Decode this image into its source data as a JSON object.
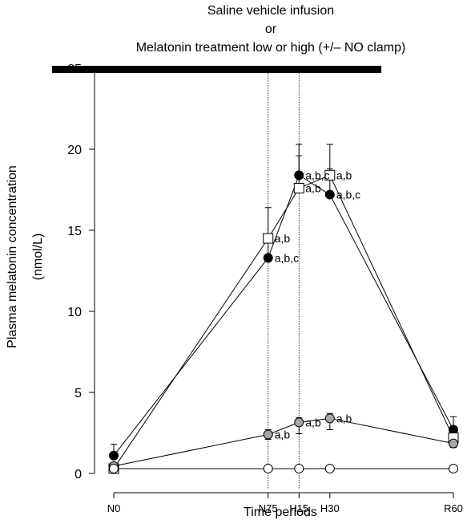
{
  "chart_data": {
    "type": "line",
    "title_lines": [
      "Saline vehicle infusion",
      "or",
      "Melatonin treatment low or high (+/– NO clamp)"
    ],
    "xlabel": "Time periods",
    "ylabel_lines": [
      "Plasma melatonin concentration",
      "(nmol/L)"
    ],
    "ylim": [
      0,
      25
    ],
    "yticks": [
      0,
      5,
      10,
      15,
      20,
      25
    ],
    "x_minutes": [
      0,
      75,
      90,
      105,
      165
    ],
    "categories": [
      "N0",
      "N75",
      "H15",
      "H30",
      "R60"
    ],
    "treatment_bar_minutes": [
      -30,
      130
    ],
    "vlines_minutes": [
      75,
      90
    ],
    "grid": false,
    "series": [
      {
        "marker": "filled-black-circle",
        "values": [
          1.1,
          13.3,
          18.4,
          17.2,
          2.7
        ],
        "err_up": [
          0.7,
          1.1,
          1.9,
          3.1,
          0.8
        ],
        "labels": [
          "",
          "a,b,c",
          "a,b,c",
          "a,b,c",
          ""
        ]
      },
      {
        "marker": "open-square",
        "values": [
          0.3,
          14.5,
          17.6,
          18.4,
          2.2
        ],
        "err_up": [
          0.3,
          1.9,
          2.0,
          0.4,
          0.4
        ],
        "labels": [
          "",
          "a,b",
          "a,b",
          "a,b",
          ""
        ]
      },
      {
        "marker": "grey-circle",
        "values": [
          0.45,
          2.4,
          3.15,
          3.4,
          1.85
        ],
        "err_up": [
          0.15,
          0.3,
          0.3,
          0.3,
          0.25
        ],
        "err_down": [
          0.15,
          0.3,
          0.7,
          0.7,
          0.25
        ],
        "labels": [
          "",
          "a,b",
          "a,b",
          "a,b",
          ""
        ]
      },
      {
        "marker": "open-circle",
        "values": [
          0.3,
          0.3,
          0.3,
          0.3,
          0.3
        ],
        "labels": [
          "",
          "",
          "",
          "",
          ""
        ]
      }
    ]
  }
}
